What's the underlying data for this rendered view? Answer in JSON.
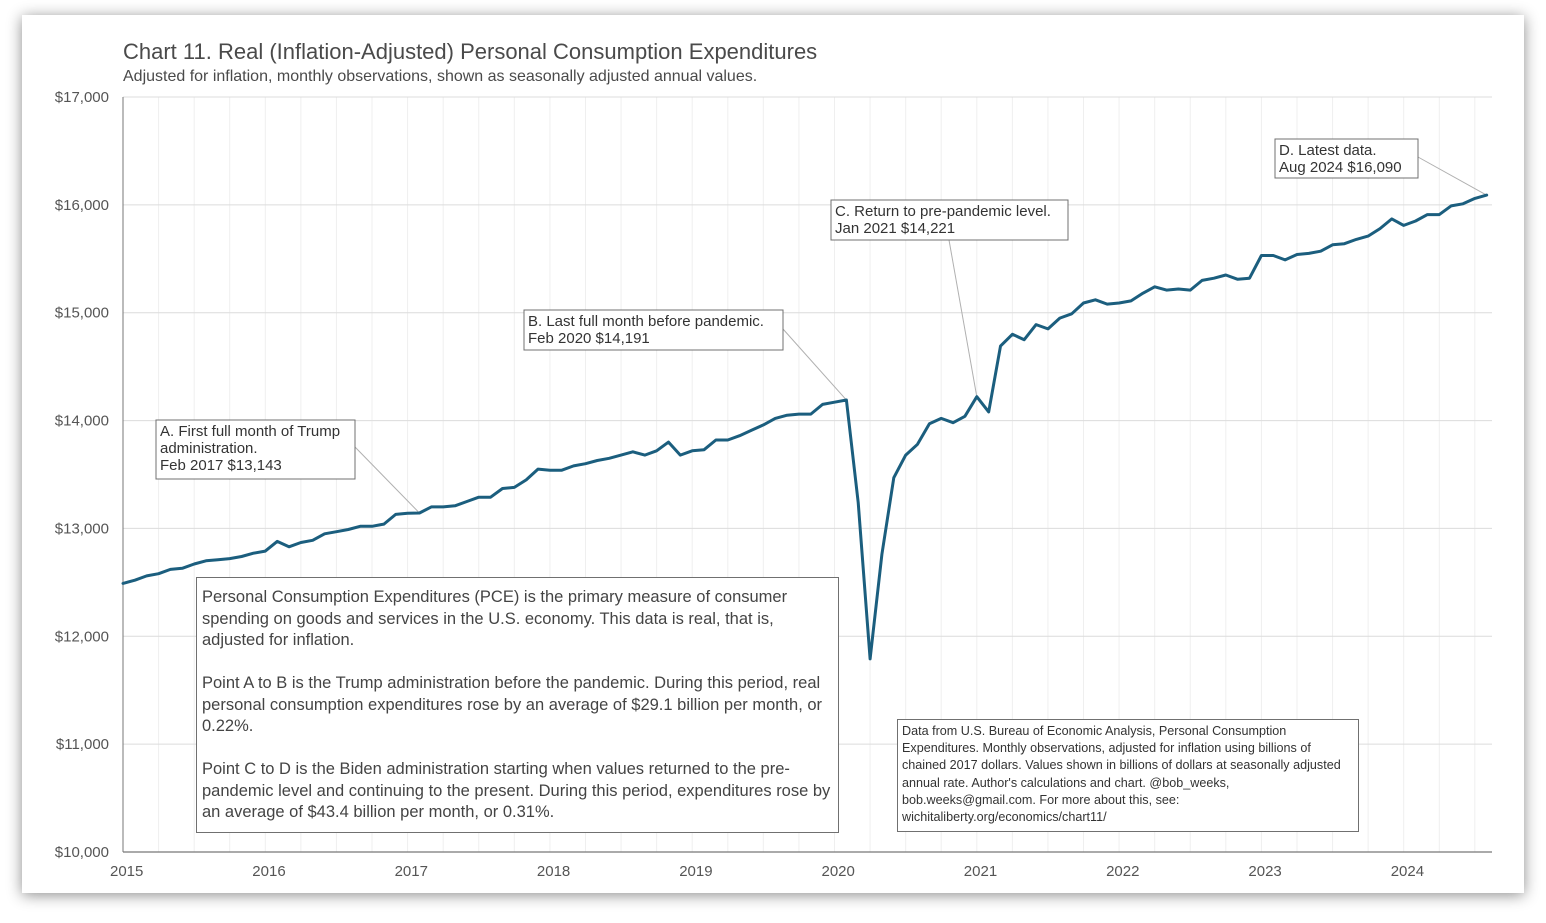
{
  "chart_data": {
    "type": "line",
    "title": "Chart 11. Real (Inflation-Adjusted) Personal Consumption Expenditures",
    "subtitle": "Adjusted for inflation, monthly observations, shown as seasonally adjusted annual values.",
    "xlabel": "",
    "ylabel": "",
    "ylim": [
      10000,
      17000
    ],
    "xlim": [
      "2015-01",
      "2024-08"
    ],
    "grid": true,
    "legend": "none",
    "y_ticks": [
      "$10,000",
      "$11,000",
      "$12,000",
      "$13,000",
      "$14,000",
      "$15,000",
      "$16,000",
      "$17,000"
    ],
    "y_tick_values": [
      10000,
      11000,
      12000,
      13000,
      14000,
      15000,
      16000,
      17000
    ],
    "x_ticks": [
      "2015",
      "2016",
      "2017",
      "2018",
      "2019",
      "2020",
      "2021",
      "2022",
      "2023",
      "2024"
    ],
    "start": {
      "year": 2015,
      "month": 1
    },
    "series": [
      {
        "name": "Real Personal Consumption Expenditures",
        "color": "#1b5e7e",
        "values": [
          12490,
          12520,
          12560,
          12580,
          12620,
          12630,
          12670,
          12700,
          12710,
          12720,
          12740,
          12770,
          12790,
          12880,
          12830,
          12870,
          12890,
          12950,
          12970,
          12990,
          13020,
          13020,
          13040,
          13130,
          13140,
          13143,
          13200,
          13200,
          13210,
          13250,
          13290,
          13290,
          13370,
          13380,
          13450,
          13550,
          13540,
          13540,
          13580,
          13600,
          13630,
          13650,
          13680,
          13710,
          13680,
          13720,
          13800,
          13680,
          13720,
          13730,
          13820,
          13820,
          13860,
          13910,
          13960,
          14020,
          14050,
          14060,
          14060,
          14150,
          14170,
          14191,
          13240,
          11790,
          12760,
          13470,
          13680,
          13780,
          13970,
          14020,
          13980,
          14040,
          14221,
          14080,
          14690,
          14800,
          14750,
          14890,
          14850,
          14950,
          14990,
          15090,
          15120,
          15080,
          15090,
          15110,
          15180,
          15240,
          15210,
          15220,
          15210,
          15300,
          15320,
          15350,
          15310,
          15320,
          15530,
          15530,
          15490,
          15540,
          15550,
          15570,
          15630,
          15640,
          15680,
          15710,
          15780,
          15870,
          15810,
          15850,
          15910,
          15910,
          15990,
          16010,
          16060,
          16090
        ]
      }
    ],
    "annotations": [
      {
        "id": "A",
        "lines": [
          "A. First full  month  of Trump",
          "administration.",
          "Feb 2017  $13,143"
        ],
        "date": "2017-02",
        "value": 13143
      },
      {
        "id": "B",
        "lines": [
          "B. Last full  month  before pandemic.",
          "Feb 2020  $14,191"
        ],
        "date": "2020-02",
        "value": 14191
      },
      {
        "id": "C",
        "lines": [
          "C. Return  to pre-pandemic level.",
          "Jan 2021  $14,221"
        ],
        "date": "2021-01",
        "value": 14221
      },
      {
        "id": "D",
        "lines": [
          "D. Latest data.",
          "Aug 2024  $16,090"
        ],
        "date": "2024-08",
        "value": 16090
      }
    ]
  },
  "notes": {
    "main": [
      "Personal Consumption Expenditures (PCE) is the primary measure of consumer spending on goods and services in the U.S. economy. This data is real, that is, adjusted for inflation.",
      "Point A to B is the Trump administration before the pandemic. During this period, real personal consumption expenditures rose by an average of $29.1 billion per month, or 0.22%.",
      "Point C to D is the Biden administration starting when values returned to the pre-pandemic level and continuing to the present. During this period, expenditures rose by an average of $43.4 billion per month, or 0.31%."
    ],
    "source": "Data from U.S. Bureau of Economic Analysis, Personal Consumption Expenditures. Monthly observations, adjusted for inflation using billions of chained 2017 dollars. Values shown in billions of dollars at seasonally adjusted annual rate. Author's calculations and chart. @bob_weeks, bob.weeks@gmail.com. For more about this, see: wichitaliberty.org/economics/chart11/"
  },
  "colors": {
    "line": "#1b5e7e",
    "grid": "#e6e6e6",
    "axis": "#777777",
    "text": "#4a4a4a"
  }
}
